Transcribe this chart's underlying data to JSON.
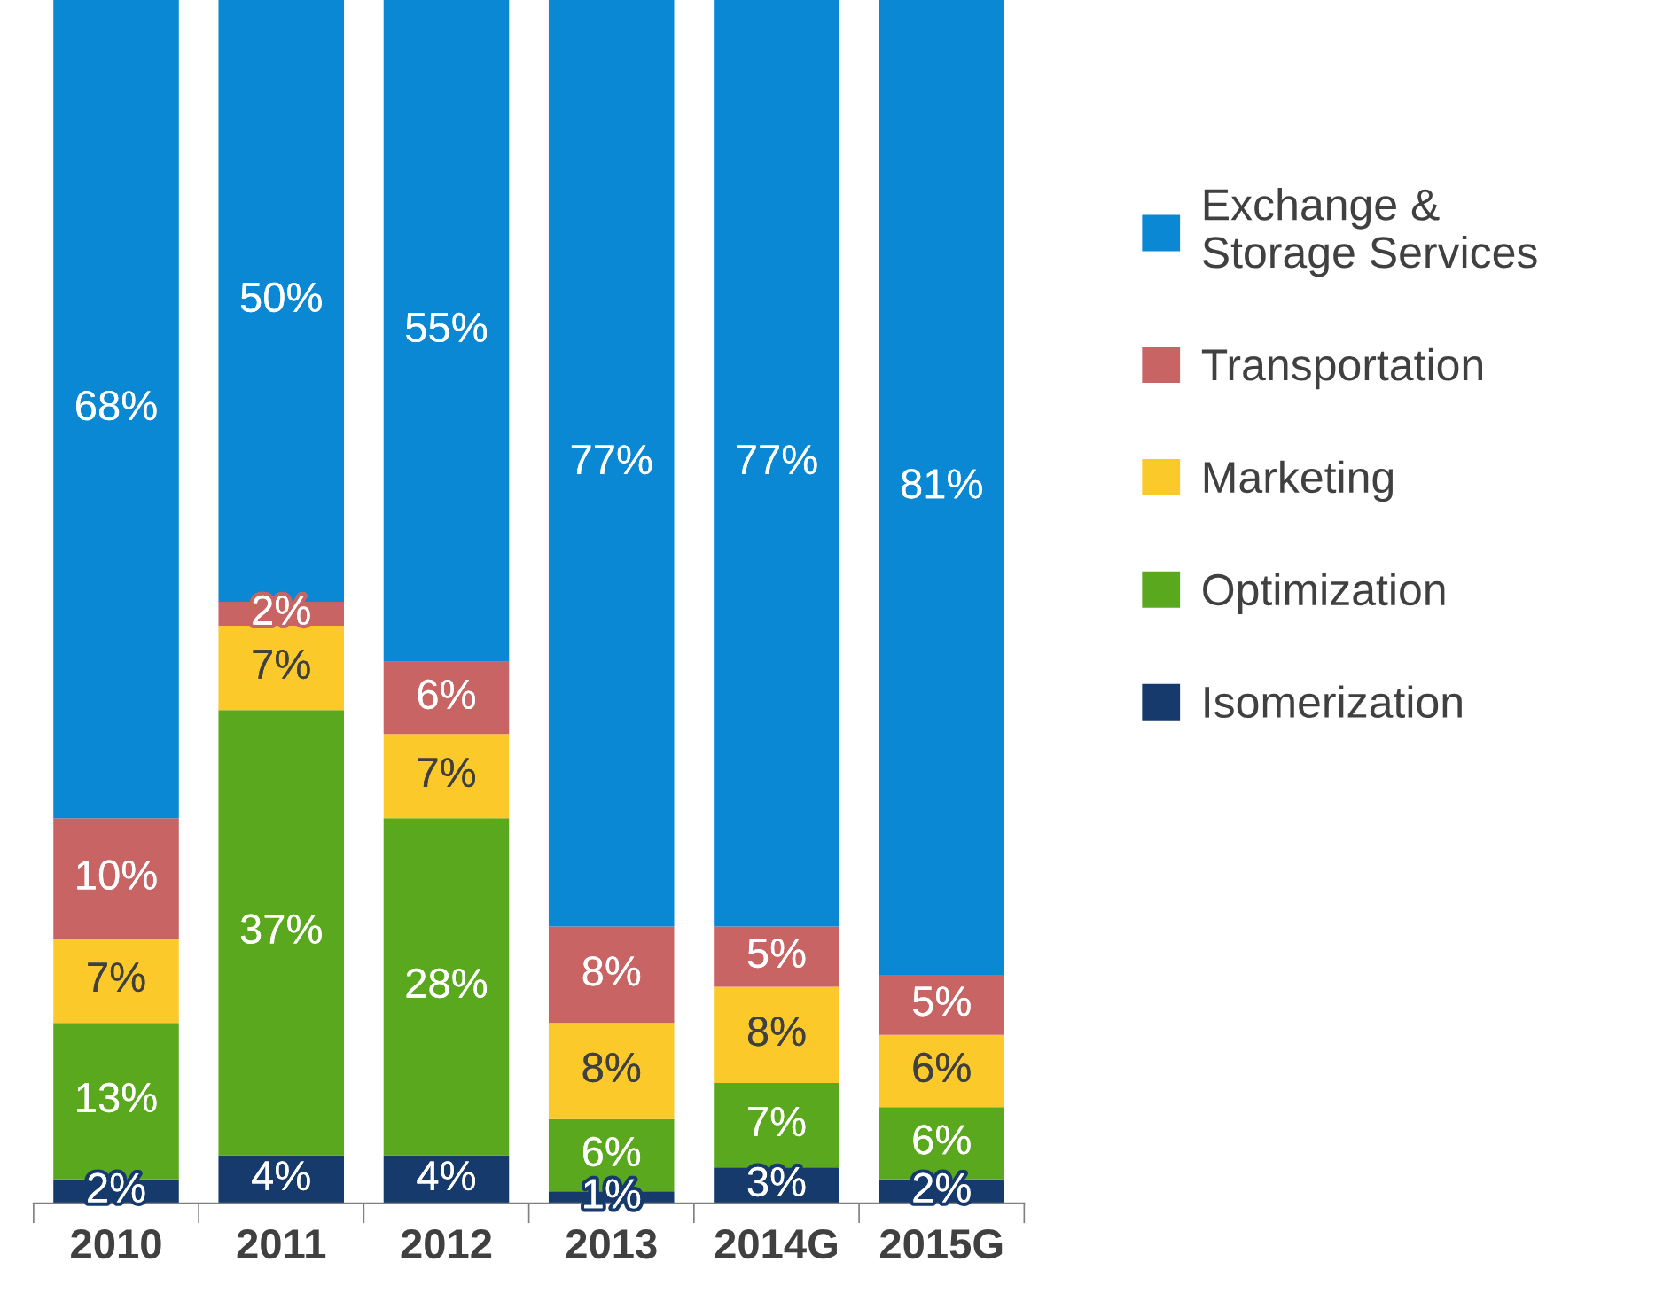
{
  "chart_data": {
    "type": "bar",
    "stacked": true,
    "categories": [
      "2010",
      "2011",
      "2012",
      "2013",
      "2014G",
      "2015G"
    ],
    "series": [
      {
        "name": "Isomerization",
        "color": "#163a6b",
        "values": [
          2,
          4,
          4,
          1,
          3,
          2
        ],
        "value_labels": [
          "2%",
          "4%",
          "4%",
          "1%",
          "3%",
          "2%"
        ]
      },
      {
        "name": "Optimization",
        "color": "#5aa81e",
        "values": [
          13,
          37,
          28,
          6,
          7,
          6
        ],
        "value_labels": [
          "13%",
          "37%",
          "28%",
          "6%",
          "7%",
          "6%"
        ]
      },
      {
        "name": "Marketing",
        "color": "#fcc92a",
        "values": [
          7,
          7,
          7,
          8,
          8,
          6
        ],
        "value_labels": [
          "7%",
          "7%",
          "7%",
          "8%",
          "8%",
          "6%"
        ]
      },
      {
        "name": "Transportation",
        "color": "#c86464",
        "values": [
          10,
          2,
          6,
          8,
          5,
          5
        ],
        "value_labels": [
          "10%",
          "2%",
          "6%",
          "8%",
          "5%",
          "5%"
        ]
      },
      {
        "name": "Exchange &\nStorage Services",
        "color": "#0a88d4",
        "values": [
          68,
          50,
          55,
          77,
          77,
          81
        ],
        "value_labels": [
          "68%",
          "50%",
          "55%",
          "77%",
          "77%",
          "81%"
        ]
      }
    ],
    "ylim": [
      0,
      100
    ],
    "tick_labels": "x",
    "grid": false,
    "legend": "right"
  }
}
